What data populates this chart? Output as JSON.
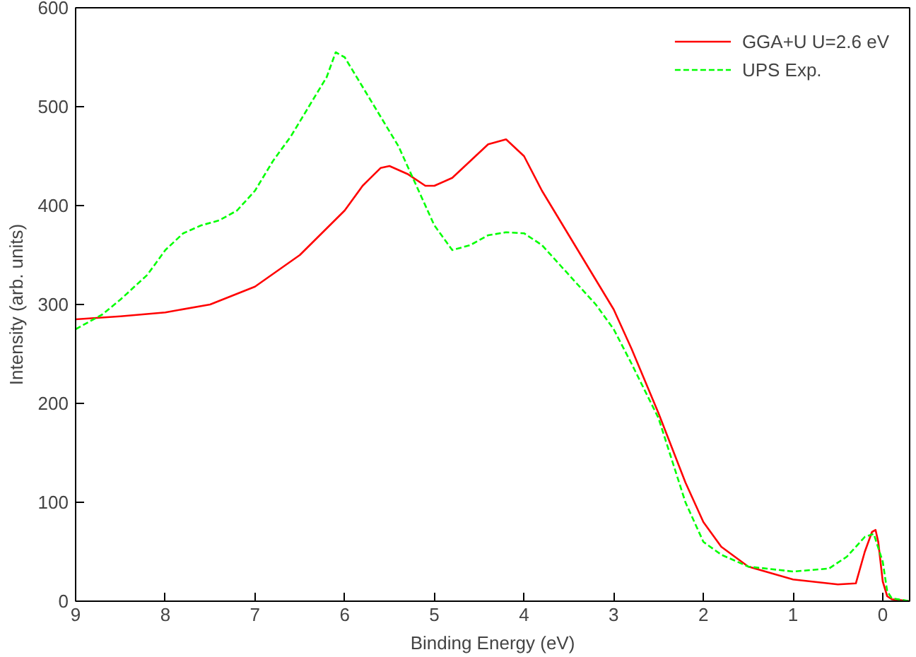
{
  "chart_data": {
    "type": "line",
    "xlabel": "Binding Energy (eV)",
    "ylabel": "Intensity (arb. units)",
    "xlim": [
      9,
      -0.3
    ],
    "ylim": [
      0,
      600
    ],
    "xticks": [
      9,
      8,
      7,
      6,
      5,
      4,
      3,
      2,
      1,
      0
    ],
    "yticks": [
      0,
      100,
      200,
      300,
      400,
      500,
      600
    ],
    "grid": false,
    "legend": "top right",
    "series": [
      {
        "name": "GGA+U U=2.6 eV",
        "color": "#ff0000",
        "line_style": "solid",
        "x": [
          9,
          8.5,
          8,
          7.5,
          7,
          6.5,
          6,
          5.8,
          5.6,
          5.5,
          5.3,
          5.1,
          5.0,
          4.8,
          4.6,
          4.4,
          4.2,
          4.0,
          3.8,
          3.5,
          3.2,
          3.0,
          2.8,
          2.5,
          2.2,
          2.0,
          1.8,
          1.5,
          1.0,
          0.5,
          0.3,
          0.2,
          0.12,
          0.08,
          0.05,
          0.0,
          -0.05,
          -0.1,
          -0.3
        ],
        "values": [
          285,
          288,
          292,
          300,
          318,
          350,
          395,
          420,
          438,
          440,
          432,
          420,
          420,
          428,
          445,
          462,
          467,
          450,
          415,
          370,
          325,
          295,
          255,
          190,
          120,
          80,
          55,
          35,
          22,
          17,
          18,
          50,
          70,
          72,
          60,
          20,
          5,
          2,
          0
        ]
      },
      {
        "name": "UPS Exp.",
        "color": "#00ff00",
        "line_style": "dashed",
        "x": [
          9,
          8.7,
          8.5,
          8.2,
          8,
          7.8,
          7.6,
          7.4,
          7.2,
          7,
          6.8,
          6.6,
          6.4,
          6.2,
          6.1,
          6.0,
          5.8,
          5.6,
          5.4,
          5.2,
          5.0,
          4.8,
          4.6,
          4.4,
          4.2,
          4.0,
          3.8,
          3.6,
          3.4,
          3.2,
          3.0,
          2.8,
          2.5,
          2.2,
          2.0,
          1.8,
          1.5,
          1.0,
          0.6,
          0.4,
          0.2,
          0.1,
          0.0,
          -0.05,
          -0.1,
          -0.3
        ],
        "values": [
          275,
          290,
          305,
          330,
          355,
          372,
          380,
          385,
          395,
          415,
          445,
          470,
          500,
          530,
          555,
          550,
          520,
          490,
          460,
          420,
          380,
          355,
          360,
          370,
          373,
          372,
          360,
          340,
          320,
          300,
          275,
          240,
          185,
          100,
          60,
          47,
          35,
          30,
          33,
          45,
          65,
          68,
          40,
          10,
          3,
          0
        ]
      }
    ]
  }
}
